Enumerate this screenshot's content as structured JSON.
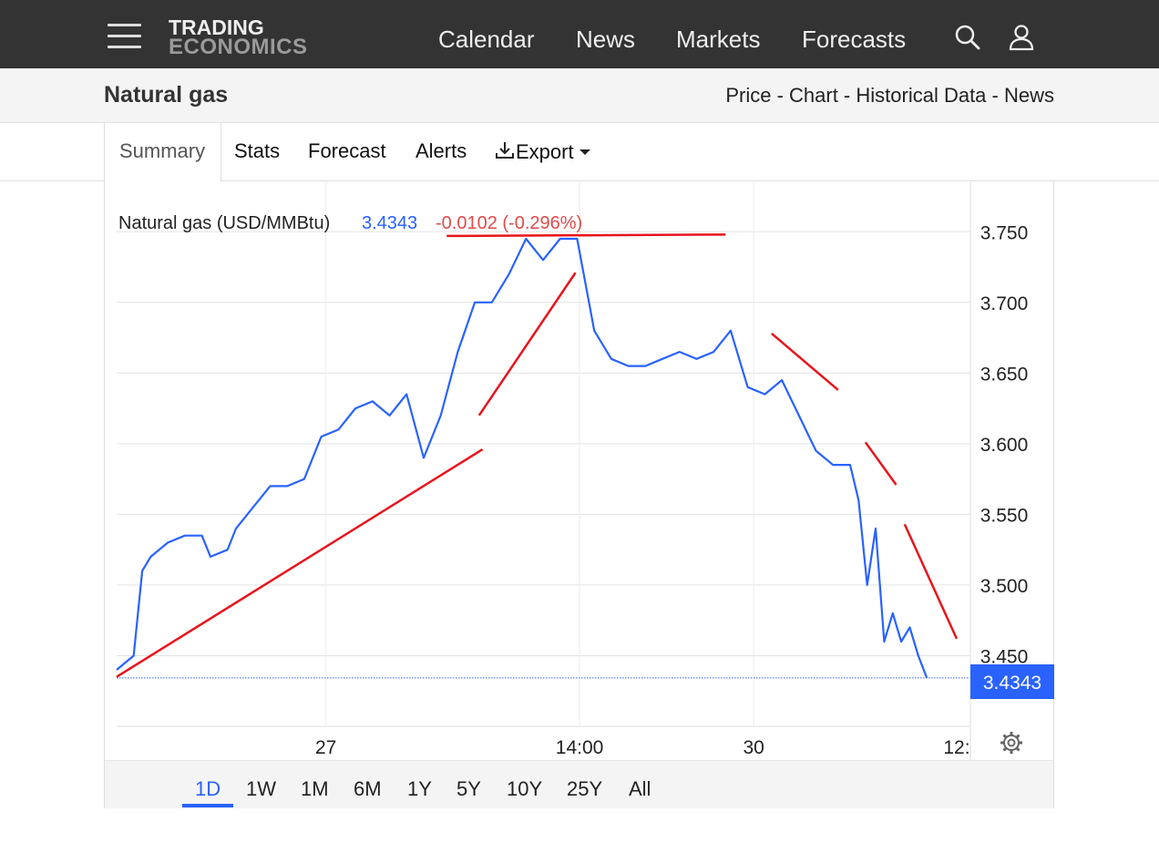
{
  "brand": {
    "line1": "TRADING",
    "line2": "ECONOMICS"
  },
  "nav": {
    "items": [
      "Calendar",
      "News",
      "Markets",
      "Forecasts"
    ]
  },
  "header": {
    "title": "Natural gas",
    "links": [
      "Price",
      "Chart",
      "Historical Data",
      "News"
    ],
    "separator": " - "
  },
  "tabs": {
    "active": "Summary",
    "items": [
      "Stats",
      "Forecast",
      "Alerts"
    ],
    "export_label": "Export"
  },
  "quote": {
    "name": "Natural gas (USD/MMBtu)",
    "price": "3.4343",
    "change": "-0.0102 (-0.296%)"
  },
  "price_tag": "3.4343",
  "ranges": {
    "active": "1D",
    "items": [
      "1D",
      "1W",
      "1M",
      "6M",
      "1Y",
      "5Y",
      "10Y",
      "25Y",
      "All"
    ]
  },
  "colors": {
    "line": "#2962ff",
    "trendline": "#e8141c",
    "negative": "#e04b4b",
    "topbar": "#333333"
  },
  "icons": [
    "menu-icon",
    "search-icon",
    "user-icon",
    "download-icon",
    "caret-down-icon",
    "gear-icon"
  ],
  "chart_data": {
    "type": "line",
    "series": [
      {
        "name": "Natural gas (USD/MMBtu)",
        "x": [
          0,
          0.02,
          0.03,
          0.04,
          0.06,
          0.08,
          0.1,
          0.11,
          0.13,
          0.14,
          0.16,
          0.18,
          0.2,
          0.22,
          0.24,
          0.26,
          0.28,
          0.3,
          0.32,
          0.34,
          0.36,
          0.38,
          0.4,
          0.42,
          0.44,
          0.46,
          0.48,
          0.5,
          0.52,
          0.54,
          0.56,
          0.58,
          0.6,
          0.62,
          0.64,
          0.66,
          0.68,
          0.7,
          0.72,
          0.74,
          0.76,
          0.78,
          0.8,
          0.82,
          0.84,
          0.85,
          0.86,
          0.87,
          0.88,
          0.89,
          0.9,
          0.91,
          0.92,
          0.93,
          0.94,
          0.95
        ],
        "values": [
          3.44,
          3.45,
          3.51,
          3.52,
          3.53,
          3.535,
          3.535,
          3.52,
          3.525,
          3.54,
          3.555,
          3.57,
          3.57,
          3.575,
          3.605,
          3.61,
          3.625,
          3.63,
          3.62,
          3.635,
          3.59,
          3.62,
          3.665,
          3.7,
          3.7,
          3.72,
          3.745,
          3.73,
          3.745,
          3.745,
          3.68,
          3.66,
          3.655,
          3.655,
          3.66,
          3.665,
          3.66,
          3.665,
          3.68,
          3.64,
          3.635,
          3.645,
          3.62,
          3.595,
          3.585,
          3.585,
          3.585,
          3.56,
          3.5,
          3.54,
          3.46,
          3.48,
          3.46,
          3.47,
          3.45,
          3.4343
        ]
      }
    ],
    "x_tick_labels": [
      "27",
      "14:00",
      "30",
      "12:"
    ],
    "x_tick_positions": [
      0.2454,
      0.5428,
      0.747,
      0.985
    ],
    "y_ticks": [
      "3.750",
      "3.700",
      "3.650",
      "3.600",
      "3.550",
      "3.500",
      "3.450"
    ],
    "y_tick_values": [
      3.75,
      3.7,
      3.65,
      3.6,
      3.55,
      3.5,
      3.45
    ],
    "ylim": [
      3.4,
      3.785
    ],
    "last": 3.4343,
    "trendlines": [
      {
        "x": [
          0.0,
          0.429
        ],
        "values": [
          3.435,
          3.596
        ]
      },
      {
        "x": [
          0.425,
          0.538
        ],
        "values": [
          3.62,
          3.721
        ]
      },
      {
        "x": [
          0.387,
          0.714
        ],
        "values": [
          3.747,
          3.748
        ]
      },
      {
        "x": [
          0.768,
          0.846
        ],
        "values": [
          3.678,
          3.638
        ]
      },
      {
        "x": [
          0.878,
          0.914
        ],
        "values": [
          3.601,
          3.571
        ]
      },
      {
        "x": [
          0.924,
          0.985
        ],
        "values": [
          3.543,
          3.462
        ]
      }
    ]
  }
}
